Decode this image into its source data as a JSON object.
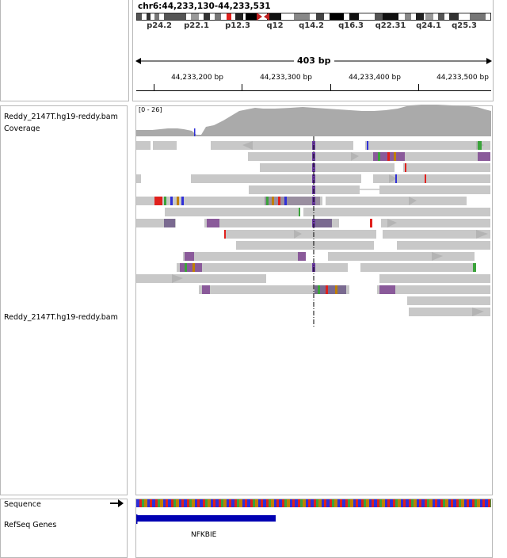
{
  "header": {
    "locus": "chr6:44,233,130-44,233,531",
    "span": "403 bp",
    "cytobands": [
      "p24.2",
      "p22.1",
      "p12.3",
      "q12",
      "q14.2",
      "q16.3",
      "q22.31",
      "q24.1",
      "q25.3"
    ],
    "ruler_ticks": [
      "44,233,200 bp",
      "44,233,300 bp",
      "44,233,400 bp",
      "44,233,500 bp"
    ]
  },
  "tracks": {
    "coverage_name": "Reddy_2147T.hg19-reddy.bam Coverage",
    "coverage_range": "[0 - 26]",
    "alignment_name": "Reddy_2147T.hg19-reddy.bam",
    "sequence_name": "Sequence",
    "genes_name": "RefSeq Genes",
    "gene_label": "NFKBIE"
  },
  "colors": {
    "read": "#c8c8c8",
    "coverage": "#aaaaaa",
    "gene": "#0000b2",
    "centromere": "#d11d1d",
    "highlight": "#e0201c"
  },
  "icons": {
    "sequence_strand": "arrow-right-icon"
  }
}
